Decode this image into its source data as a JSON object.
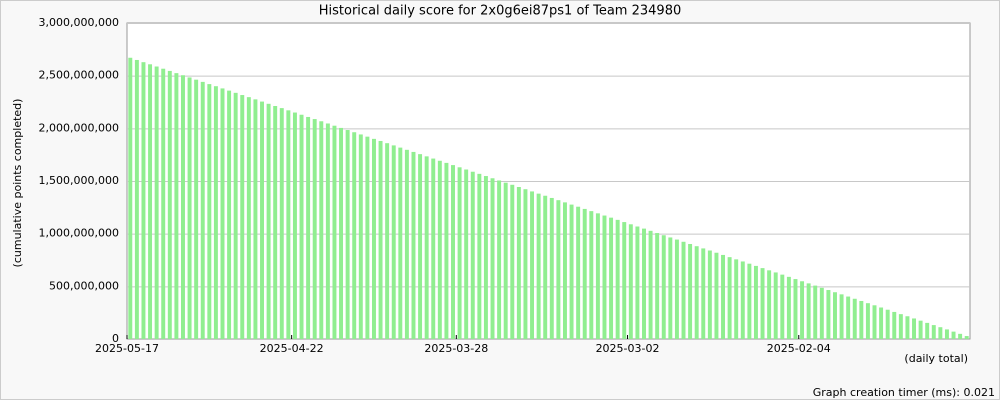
{
  "chart_data": {
    "type": "bar",
    "title": "Historical daily score for 2x0g6ei87ps1 of Team 234980",
    "y_label": "(cumulative points completed)",
    "x_label": "(daily total)",
    "footer": "Graph creation timer (ms): 0.021",
    "color": "#90ee90",
    "grid": true,
    "ylim": [
      0,
      3000000000
    ],
    "yticks": [
      {
        "value": 0,
        "label": "0"
      },
      {
        "value": 500000000,
        "label": "500,000,000"
      },
      {
        "value": 1000000000,
        "label": "1,000,000,000"
      },
      {
        "value": 1500000000,
        "label": "1,500,000,000"
      },
      {
        "value": 2000000000,
        "label": "2,000,000,000"
      },
      {
        "value": 2500000000,
        "label": "2,500,000,000"
      },
      {
        "value": 3000000000,
        "label": "3,000,000,000"
      }
    ],
    "categories": [
      "2025-05-17",
      null,
      null,
      null,
      null,
      null,
      null,
      null,
      null,
      null,
      null,
      null,
      null,
      null,
      null,
      null,
      null,
      null,
      null,
      null,
      null,
      null,
      null,
      null,
      null,
      "2025-04-22",
      null,
      null,
      null,
      null,
      null,
      null,
      null,
      null,
      null,
      null,
      null,
      null,
      null,
      null,
      null,
      null,
      null,
      null,
      null,
      null,
      null,
      null,
      null,
      null,
      "2025-03-28",
      null,
      null,
      null,
      null,
      null,
      null,
      null,
      null,
      null,
      null,
      null,
      null,
      null,
      null,
      null,
      null,
      null,
      null,
      null,
      null,
      null,
      null,
      null,
      null,
      null,
      "2025-03-02",
      null,
      null,
      null,
      null,
      null,
      null,
      null,
      null,
      null,
      null,
      null,
      null,
      null,
      null,
      null,
      null,
      null,
      null,
      null,
      null,
      null,
      null,
      null,
      null,
      null,
      "2025-02-04",
      null,
      null,
      null,
      null,
      null,
      null,
      null,
      null,
      null,
      null,
      null,
      null,
      null,
      null,
      null,
      null,
      null,
      null,
      null,
      null,
      null,
      null,
      null,
      null,
      null
    ],
    "values": [
      2670000000,
      2649000000,
      2628000000,
      2608000000,
      2587000000,
      2566000000,
      2545000000,
      2524000000,
      2504000000,
      2483000000,
      2462000000,
      2441000000,
      2420000000,
      2400000000,
      2379000000,
      2358000000,
      2337000000,
      2316000000,
      2296000000,
      2275000000,
      2254000000,
      2233000000,
      2212000000,
      2192000000,
      2171000000,
      2150000000,
      2129000000,
      2108000000,
      2088000000,
      2067000000,
      2046000000,
      2025000000,
      2004000000,
      1984000000,
      1963000000,
      1942000000,
      1921000000,
      1900000000,
      1880000000,
      1859000000,
      1838000000,
      1817000000,
      1796000000,
      1776000000,
      1755000000,
      1734000000,
      1713000000,
      1692000000,
      1672000000,
      1651000000,
      1630000000,
      1609000000,
      1588000000,
      1568000000,
      1547000000,
      1526000000,
      1505000000,
      1484000000,
      1464000000,
      1443000000,
      1422000000,
      1401000000,
      1380000000,
      1360000000,
      1339000000,
      1318000000,
      1297000000,
      1276000000,
      1256000000,
      1235000000,
      1214000000,
      1193000000,
      1172000000,
      1152000000,
      1131000000,
      1110000000,
      1089000000,
      1068000000,
      1048000000,
      1027000000,
      1006000000,
      985000000,
      964000000,
      944000000,
      923000000,
      902000000,
      881000000,
      860000000,
      840000000,
      819000000,
      798000000,
      777000000,
      756000000,
      736000000,
      715000000,
      694000000,
      673000000,
      652000000,
      632000000,
      611000000,
      590000000,
      569000000,
      548000000,
      528000000,
      507000000,
      486000000,
      465000000,
      444000000,
      424000000,
      403000000,
      382000000,
      361000000,
      340000000,
      320000000,
      299000000,
      278000000,
      257000000,
      236000000,
      216000000,
      195000000,
      174000000,
      153000000,
      132000000,
      112000000,
      91000000,
      70000000,
      49000000,
      28000000
    ]
  }
}
